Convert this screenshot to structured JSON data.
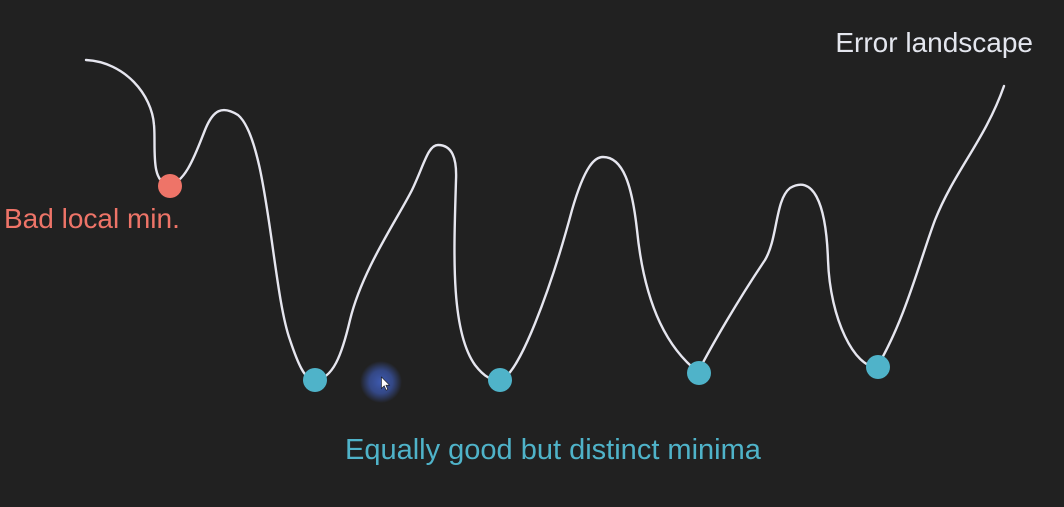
{
  "labels": {
    "title": "Error landscape",
    "bad_minimum": "Bad local min.",
    "good_minima": "Equally good but distinct minima"
  },
  "colors": {
    "background": "#212121",
    "curve": "#e6e6ef",
    "title": "#e4e6ee",
    "bad": "#ee7468",
    "good": "#4fb3c9",
    "cursor_glow": "#3f5db8"
  },
  "icons": {
    "cursor": "mouse-pointer-icon"
  }
}
